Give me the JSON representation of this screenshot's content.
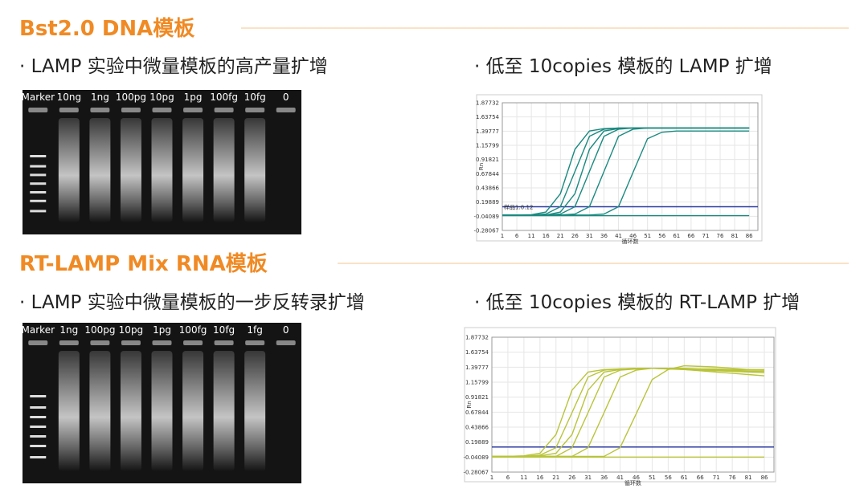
{
  "sections": [
    {
      "title": "Bst2.0 DNA模板",
      "left": {
        "caption": "· LAMP 实验中微量模板的高产量扩增",
        "lanes": [
          "Marker",
          "10ng",
          "1ng",
          "100pg",
          "10pg",
          "1pg",
          "100fg",
          "10fg",
          "0"
        ]
      },
      "right": {
        "caption": "· 低至 10copies 模板的 LAMP 扩增",
        "plot": {
          "xlabel": "循环数",
          "ylabel": "Rn",
          "xlim": [
            1,
            89
          ],
          "ylim": [
            -0.28067,
            1.87732
          ],
          "xticks": [
            1,
            6,
            11,
            16,
            21,
            26,
            31,
            36,
            41,
            46,
            51,
            56,
            61,
            66,
            71,
            76,
            81,
            86
          ],
          "yticks": [
            1.87732,
            1.63754,
            1.39777,
            1.15799,
            0.91821,
            0.67844,
            0.43866,
            0.19889,
            -0.04089,
            -0.28067
          ],
          "x": [
            1,
            6,
            11,
            16,
            21,
            26,
            31,
            36,
            41,
            46,
            51,
            56,
            61,
            66,
            71,
            76,
            81,
            86
          ],
          "color": "#1a8a80",
          "threshold": 0.12,
          "threshold_label": "样品1:0.12",
          "threshold_color": "#2b3aa0",
          "curves": [
            [
              -0.02,
              -0.02,
              -0.015,
              0.03,
              0.34,
              1.09,
              1.4,
              1.44,
              1.45,
              1.45,
              1.45,
              1.45,
              1.45,
              1.45,
              1.45,
              1.45,
              1.45,
              1.45
            ],
            [
              -0.02,
              -0.02,
              -0.02,
              -0.004,
              0.12,
              0.715,
              1.31,
              1.43,
              1.45,
              1.45,
              1.45,
              1.45,
              1.45,
              1.45,
              1.45,
              1.45,
              1.45,
              1.45
            ],
            [
              -0.02,
              -0.02,
              -0.02,
              -0.02,
              0.03,
              0.34,
              1.09,
              1.4,
              1.44,
              1.45,
              1.45,
              1.45,
              1.45,
              1.45,
              1.45,
              1.45,
              1.45,
              1.45
            ],
            [
              -0.02,
              -0.02,
              -0.02,
              -0.02,
              -0.004,
              0.12,
              0.715,
              1.31,
              1.43,
              1.45,
              1.45,
              1.45,
              1.45,
              1.45,
              1.45,
              1.45,
              1.45,
              1.45
            ],
            [
              -0.02,
              -0.02,
              -0.02,
              -0.02,
              -0.02,
              -0.004,
              0.12,
              0.715,
              1.31,
              1.43,
              1.45,
              1.45,
              1.45,
              1.45,
              1.45,
              1.45,
              1.45,
              1.45
            ],
            [
              -0.02,
              -0.02,
              -0.02,
              -0.02,
              -0.02,
              -0.02,
              -0.02,
              -0.004,
              0.12,
              0.7,
              1.27,
              1.38,
              1.4,
              1.4,
              1.4,
              1.4,
              1.4,
              1.4
            ],
            [
              -0.03,
              -0.03,
              -0.03,
              -0.03,
              -0.03,
              -0.03,
              -0.03,
              -0.03,
              -0.03,
              -0.03,
              -0.03,
              -0.03,
              -0.03,
              -0.03,
              -0.03,
              -0.03,
              -0.03,
              -0.03
            ]
          ]
        }
      }
    },
    {
      "title": "RT-LAMP Mix RNA模板",
      "left": {
        "caption": "· LAMP 实验中微量模板的一步反转录扩增",
        "lanes": [
          "Marker",
          "1ng",
          "100pg",
          "10pg",
          "1pg",
          "100fg",
          "10fg",
          "1fg",
          "0"
        ]
      },
      "right": {
        "caption": "· 低至 10copies 模板的 RT-LAMP 扩增",
        "plot": {
          "xlabel": "循环数",
          "ylabel": "Rn",
          "xlim": [
            1,
            89
          ],
          "ylim": [
            -0.28067,
            1.87732
          ],
          "xticks": [
            1,
            6,
            11,
            16,
            21,
            26,
            31,
            36,
            41,
            46,
            51,
            56,
            61,
            66,
            71,
            76,
            81,
            86
          ],
          "yticks": [
            1.87732,
            1.63754,
            1.39777,
            1.15799,
            0.91821,
            0.67844,
            0.43866,
            0.19889,
            -0.04089,
            -0.28067
          ],
          "x": [
            1,
            6,
            11,
            16,
            21,
            26,
            31,
            36,
            41,
            46,
            51,
            56,
            61,
            66,
            71,
            76,
            81,
            86
          ],
          "color": "#b9c43a",
          "threshold": 0.12,
          "threshold_color": "#2b3aa0",
          "curves": [
            [
              -0.03,
              -0.03,
              -0.02,
              0.02,
              0.32,
              1.03,
              1.32,
              1.36,
              1.37,
              1.38,
              1.38,
              1.37,
              1.36,
              1.35,
              1.34,
              1.33,
              1.32,
              1.31
            ],
            [
              -0.03,
              -0.03,
              -0.03,
              -0.01,
              0.11,
              0.67,
              1.24,
              1.35,
              1.37,
              1.38,
              1.38,
              1.37,
              1.37,
              1.36,
              1.36,
              1.35,
              1.35,
              1.35
            ],
            [
              -0.03,
              -0.03,
              -0.03,
              -0.02,
              0.02,
              0.32,
              1.03,
              1.32,
              1.36,
              1.37,
              1.38,
              1.38,
              1.36,
              1.34,
              1.32,
              1.3,
              1.28,
              1.26
            ],
            [
              -0.03,
              -0.03,
              -0.03,
              -0.03,
              -0.03,
              0.11,
              0.67,
              1.24,
              1.35,
              1.37,
              1.38,
              1.38,
              1.38,
              1.37,
              1.37,
              1.36,
              1.36,
              1.36
            ],
            [
              -0.03,
              -0.03,
              -0.03,
              -0.03,
              -0.03,
              -0.03,
              0.11,
              0.67,
              1.24,
              1.35,
              1.38,
              1.38,
              1.37,
              1.36,
              1.35,
              1.34,
              1.33,
              1.33
            ],
            [
              -0.03,
              -0.03,
              -0.03,
              -0.03,
              -0.03,
              -0.03,
              -0.03,
              -0.03,
              0.11,
              0.65,
              1.2,
              1.36,
              1.42,
              1.41,
              1.4,
              1.38,
              1.36,
              1.35
            ],
            [
              -0.04,
              -0.04,
              -0.04,
              -0.04,
              -0.04,
              -0.04,
              -0.04,
              -0.04,
              -0.04,
              -0.04,
              -0.04,
              -0.04,
              -0.04,
              -0.04,
              -0.04,
              -0.04,
              -0.04,
              -0.04
            ]
          ]
        }
      }
    }
  ]
}
